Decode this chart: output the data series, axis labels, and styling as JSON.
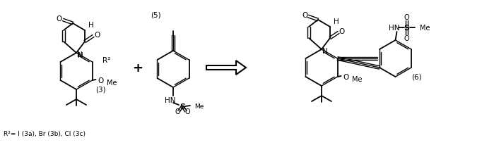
{
  "background_color": "#ffffff",
  "compound3_label": "(3)",
  "compound5_label": "(5)",
  "compound6_label": "(6)",
  "r2_note": "R²= I (3a), Br (3b), Cl (3c)",
  "plus_sign": "+",
  "figsize": [
    6.99,
    2.07
  ],
  "dpi": 100
}
